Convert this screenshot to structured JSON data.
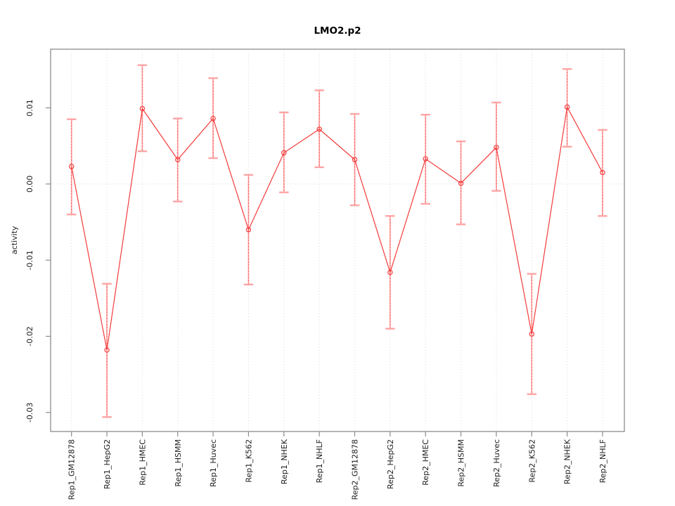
{
  "chart_data": {
    "type": "scatter",
    "title": "LMO2.p2",
    "ylabel": "activity",
    "xlabel": "",
    "legend": "none",
    "grid": {
      "vertical_per_category": true,
      "zero_line_dotted": true
    },
    "categories": [
      "Rep1_GM12878",
      "Rep1_HepG2",
      "Rep1_HMEC",
      "Rep1_HSMM",
      "Rep1_Huvec",
      "Rep1_K562",
      "Rep1_NHEK",
      "Rep1_NHLF",
      "Rep2_GM12878",
      "Rep2_HepG2",
      "Rep2_HMEC",
      "Rep2_HSMM",
      "Rep2_Huvec",
      "Rep2_K562",
      "Rep2_NHEK",
      "Rep2_NHLF"
    ],
    "series": [
      {
        "name": "activity",
        "values": [
          0.0023,
          -0.0218,
          0.0099,
          0.0032,
          0.0086,
          -0.006,
          0.0041,
          0.0072,
          0.0032,
          -0.0116,
          0.0033,
          0.0001,
          0.0048,
          -0.0197,
          0.0101,
          0.0015
        ],
        "ci_lower": [
          -0.004,
          -0.0306,
          0.0043,
          -0.0023,
          0.0034,
          -0.0132,
          -0.0011,
          0.0022,
          -0.0028,
          -0.019,
          -0.0026,
          -0.0053,
          -0.0009,
          -0.0276,
          0.0049,
          -0.0042
        ],
        "ci_upper": [
          0.0085,
          -0.0131,
          0.0156,
          0.0086,
          0.0139,
          0.0012,
          0.0094,
          0.0123,
          0.0092,
          -0.0042,
          0.0091,
          0.0056,
          0.0107,
          -0.0118,
          0.0151,
          0.0071
        ]
      }
    ],
    "yticks": {
      "values": [
        0.01,
        0.0,
        -0.01,
        -0.02,
        -0.03
      ],
      "labels": [
        "0.01",
        "0.00",
        "-0.01",
        "-0.02",
        "-0.03"
      ]
    },
    "ylim": [
      -0.0325,
      0.0177
    ],
    "colors": {
      "line": "#f43b3b",
      "point": "#f43b3b",
      "error_bar": "#ffa4a4",
      "error_bar_dots": "#f25050",
      "grid": "#dcdcdc",
      "axis_box": "#8c8c8c",
      "tick_text": "#1c1c1c",
      "title_text": "#000000"
    }
  }
}
